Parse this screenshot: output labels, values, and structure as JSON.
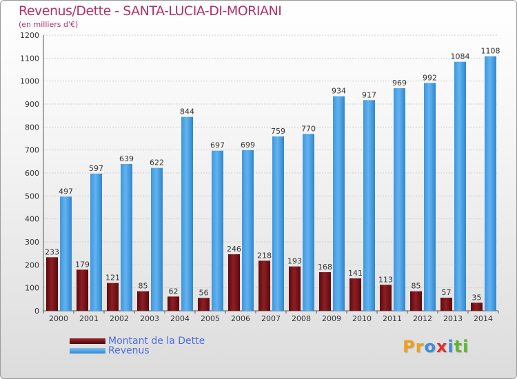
{
  "chart_data": {
    "type": "bar",
    "title": "Revenus/Dette - SANTA-LUCIA-DI-MORIANI",
    "subtitle": "(en milliers d'€)",
    "categories": [
      "2000",
      "2001",
      "2002",
      "2003",
      "2004",
      "2005",
      "2006",
      "2007",
      "2008",
      "2009",
      "2010",
      "2011",
      "2012",
      "2013",
      "2014"
    ],
    "series": [
      {
        "name": "Montant de la Dette",
        "color": "#6e0f14",
        "values": [
          233,
          179,
          121,
          85,
          62,
          56,
          246,
          218,
          193,
          168,
          141,
          113,
          85,
          57,
          35
        ]
      },
      {
        "name": "Revenus",
        "color": "#4aa3e8",
        "values": [
          497,
          597,
          639,
          622,
          844,
          697,
          699,
          759,
          770,
          934,
          917,
          969,
          992,
          1084,
          1108
        ]
      }
    ],
    "ylim": [
      0,
      1200
    ],
    "yticks": [
      0,
      100,
      200,
      300,
      400,
      500,
      600,
      700,
      800,
      900,
      1000,
      1100,
      1200
    ],
    "grid": true,
    "legend_position": "bottom-left"
  },
  "logo": {
    "letters": [
      {
        "char": "P",
        "color": "#f0a020"
      },
      {
        "char": "r",
        "color": "#f0a020"
      },
      {
        "char": "o",
        "color": "#3a8fd8"
      },
      {
        "char": "x",
        "color": "#e03030"
      },
      {
        "char": "i",
        "color": "#3a8fd8"
      },
      {
        "char": "t",
        "color": "#5cb82c"
      },
      {
        "char": "i",
        "color": "#5cb82c"
      }
    ]
  }
}
